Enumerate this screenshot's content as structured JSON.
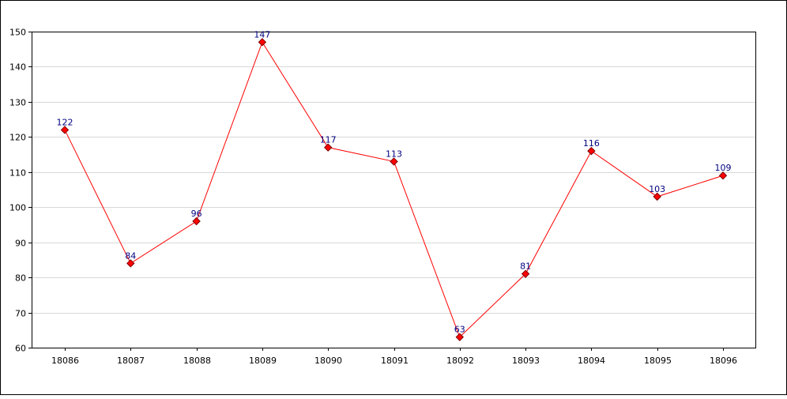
{
  "chart_data": {
    "type": "line",
    "categories": [
      "18086",
      "18087",
      "18088",
      "18089",
      "18090",
      "18091",
      "18092",
      "18093",
      "18094",
      "18095",
      "18096"
    ],
    "series": [
      {
        "values": [
          122,
          84,
          96,
          147,
          117,
          113,
          63,
          81,
          116,
          103,
          109
        ],
        "color": "#ff0000"
      }
    ],
    "ylim": [
      60,
      150
    ],
    "yticks": [
      60,
      70,
      80,
      90,
      100,
      110,
      120,
      130,
      140,
      150
    ],
    "grid": true,
    "colors": {
      "line": "#ff0000",
      "marker_fill": "#ff0000",
      "marker_stroke": "#7a0000",
      "data_label": "#000080",
      "grid": "#d8d8d8",
      "axis": "#000000",
      "frame": "#000000"
    }
  }
}
